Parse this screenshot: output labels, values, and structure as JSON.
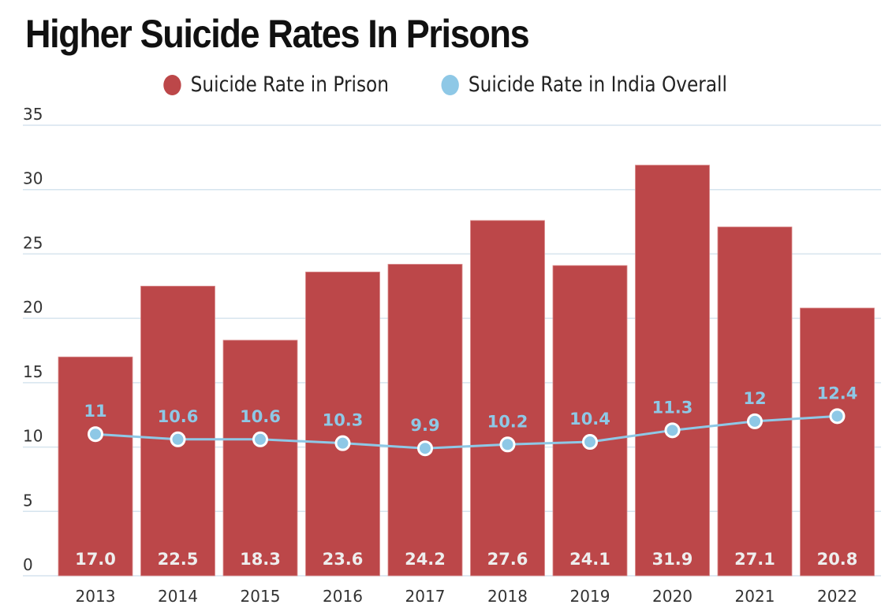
{
  "chart_data": {
    "type": "bar",
    "title": "Higher Suicide Rates In Prisons",
    "xlabel": "",
    "ylabel": "",
    "ylim": [
      0,
      35
    ],
    "yticks": [
      0,
      5,
      10,
      15,
      20,
      25,
      30,
      35
    ],
    "grid": true,
    "legend_position": "top-center",
    "categories": [
      "2013",
      "2014",
      "2015",
      "2016",
      "2017",
      "2018",
      "2019",
      "2020",
      "2021",
      "2022"
    ],
    "series": [
      {
        "name": "Suicide Rate in Prison",
        "type": "bar",
        "color": "#bc4749",
        "values": [
          17.0,
          22.5,
          18.3,
          23.6,
          24.2,
          27.6,
          24.1,
          31.9,
          27.1,
          20.8
        ],
        "labels": [
          "17.0",
          "22.5",
          "18.3",
          "23.6",
          "24.2",
          "27.6",
          "24.1",
          "31.9",
          "27.1",
          "20.8"
        ]
      },
      {
        "name": "Suicide Rate in India Overall",
        "type": "line",
        "color": "#8ec8e6",
        "values": [
          11,
          10.6,
          10.6,
          10.3,
          9.9,
          10.2,
          10.4,
          11.3,
          12,
          12.4
        ],
        "labels": [
          "11",
          "10.6",
          "10.6",
          "10.3",
          "9.9",
          "10.2",
          "10.4",
          "11.3",
          "12",
          "12.4"
        ]
      }
    ]
  },
  "colors": {
    "grid": "#d6e4ee",
    "text": "#222222"
  }
}
